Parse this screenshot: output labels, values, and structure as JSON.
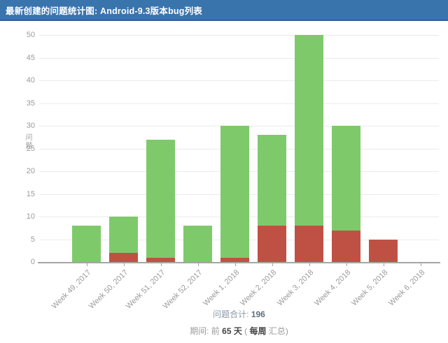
{
  "header": {
    "title": "最新创建的问题统计图: Android-9.3版本bug列表",
    "bg_color": "#3a74ad"
  },
  "chart_data": {
    "type": "bar",
    "stacked": true,
    "title": "",
    "xlabel": "",
    "ylabel": "问题",
    "ylim": [
      0,
      50
    ],
    "ytick_step": 5,
    "grid": true,
    "legend": false,
    "categories": [
      "Week 49, 2017",
      "Week 50, 2017",
      "Week 51, 2017",
      "Week 52, 2017",
      "Week 1, 2018",
      "Week 2, 2018",
      "Week 3, 2018",
      "Week 4, 2018",
      "Week 5, 2018",
      "Week 6, 2018"
    ],
    "series": [
      {
        "name": "red",
        "color": "#bf5144",
        "values": [
          0,
          2,
          1,
          0,
          1,
          8,
          8,
          7,
          5,
          0
        ]
      },
      {
        "name": "green",
        "color": "#7eca6b",
        "values": [
          8,
          8,
          26,
          8,
          29,
          20,
          42,
          23,
          0,
          0
        ]
      }
    ],
    "totals": [
      8,
      10,
      27,
      8,
      30,
      28,
      50,
      30,
      5,
      0
    ]
  },
  "footer": {
    "total_label": "问题合计:",
    "total_value": "196",
    "period_prefix": "期间: 前",
    "period_days": "65 天",
    "period_open": "(",
    "period_group": "每周",
    "period_suffix": "汇总)"
  }
}
